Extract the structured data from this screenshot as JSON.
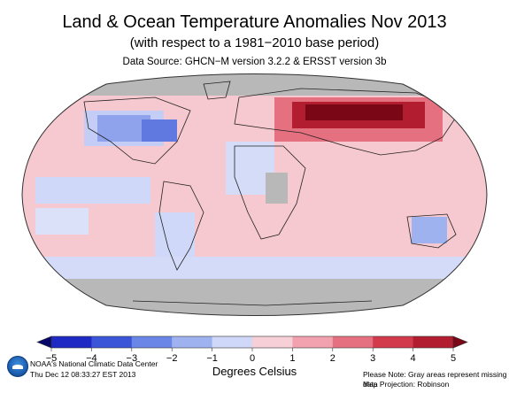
{
  "title": "Land & Ocean Temperature Anomalies Nov 2013",
  "subtitle": "(with respect to a 1981−2010 base period)",
  "data_source": "Data Source: GHCN−M version 3.2.2 & ERSST version 3b",
  "colorbar": {
    "ticks": [
      "−5",
      "−4",
      "−3",
      "−2",
      "−1",
      "0",
      "1",
      "2",
      "3",
      "4",
      "5"
    ],
    "units_label": "Degrees Celsius",
    "colors": [
      "#08086b",
      "#1f2ac4",
      "#3a55d8",
      "#6a86e6",
      "#9fb2f0",
      "#cfd8f8",
      "#f7cfd6",
      "#f2a2ae",
      "#e5707f",
      "#d23b4c",
      "#b21e2f",
      "#7a0716"
    ]
  },
  "footer": {
    "left_line1": "NOAA's National Climatic Data Center",
    "left_line2": "Thu Dec 12 08:33:27 EST 2013",
    "right_line1": "Please Note: Gray areas represent missing data",
    "right_line2": "Map Projection: Robinson"
  },
  "map": {
    "projection": "Robinson",
    "ocean_color": "#f6c8cf",
    "missing_color": "#b8b8b8",
    "land_outline_color": "#222222"
  },
  "logo_icon": "noaa-logo-icon"
}
